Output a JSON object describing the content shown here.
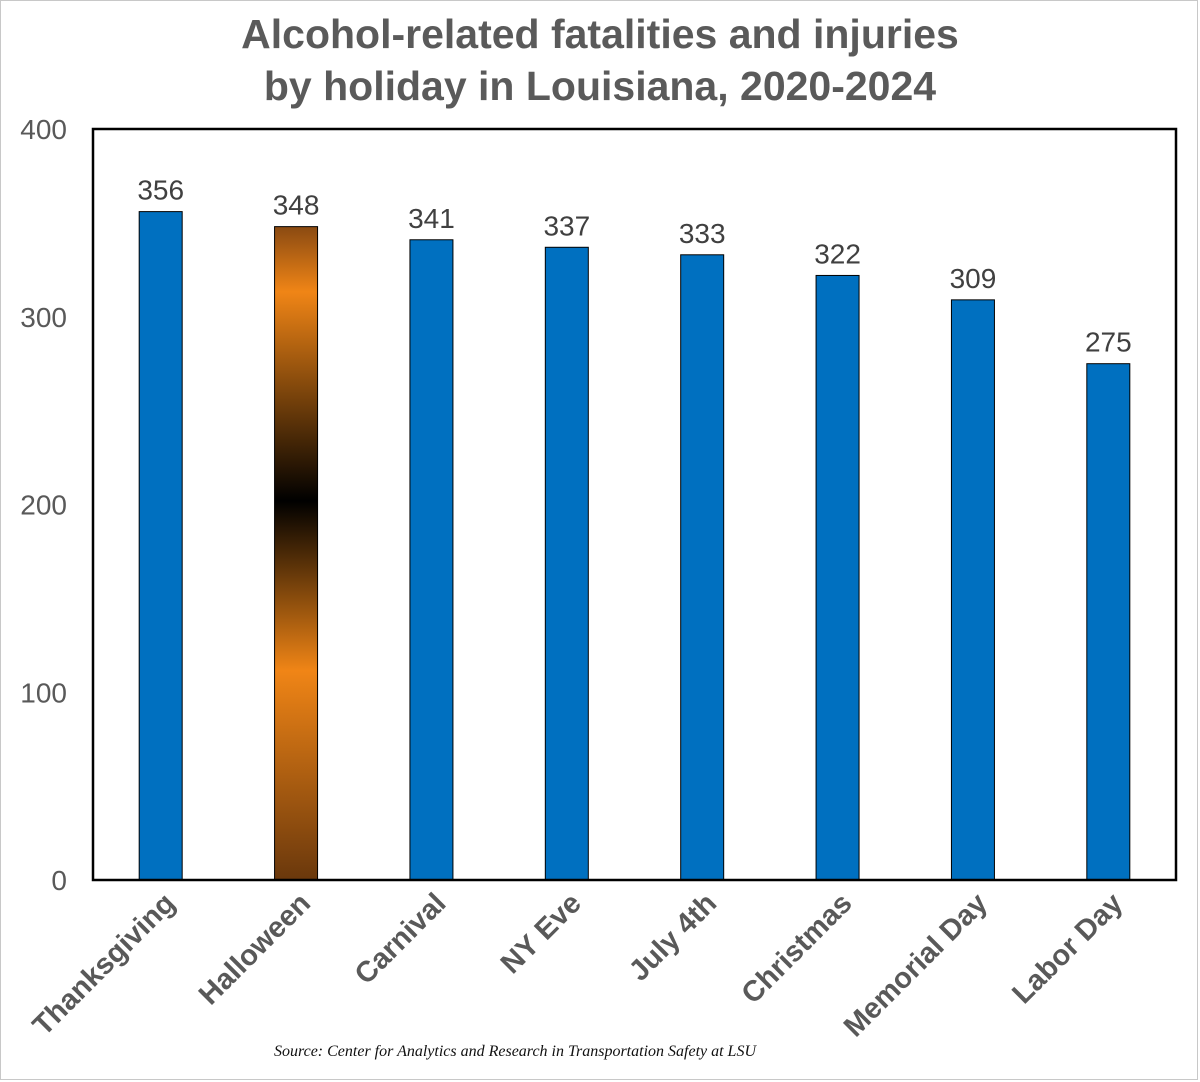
{
  "chart_data": {
    "type": "bar",
    "title_lines": [
      "Alcohol-related fatalities and injuries",
      "by holiday in Louisiana, 2020-2024"
    ],
    "categories": [
      "Thanksgiving",
      "Halloween",
      "Carnival",
      "NY Eve",
      "July 4th",
      "Christmas",
      "Memorial Day",
      "Labor Day"
    ],
    "values": [
      356,
      348,
      341,
      337,
      333,
      322,
      309,
      275
    ],
    "data_labels": [
      "356",
      "348",
      "341",
      "337",
      "333",
      "322",
      "309",
      "275"
    ],
    "highlight_category": "Halloween",
    "ylim": [
      0,
      400
    ],
    "yticks": [
      0,
      100,
      200,
      300,
      400
    ],
    "ytick_labels": [
      "0",
      "100",
      "200",
      "300",
      "400"
    ],
    "xlabel": "",
    "ylabel": "",
    "grid": false,
    "legend": "none",
    "source": "Source: Center for Analytics and Research in Transportation Safety at LSU",
    "colors": {
      "bar": "#0070c0",
      "highlight_gradient": [
        "#8a4a12",
        "#f08516",
        "#000000",
        "#f08516",
        "#6a380c"
      ],
      "title": "#5a5a5a",
      "axis_text": "#595959",
      "label_text": "#404040"
    }
  }
}
